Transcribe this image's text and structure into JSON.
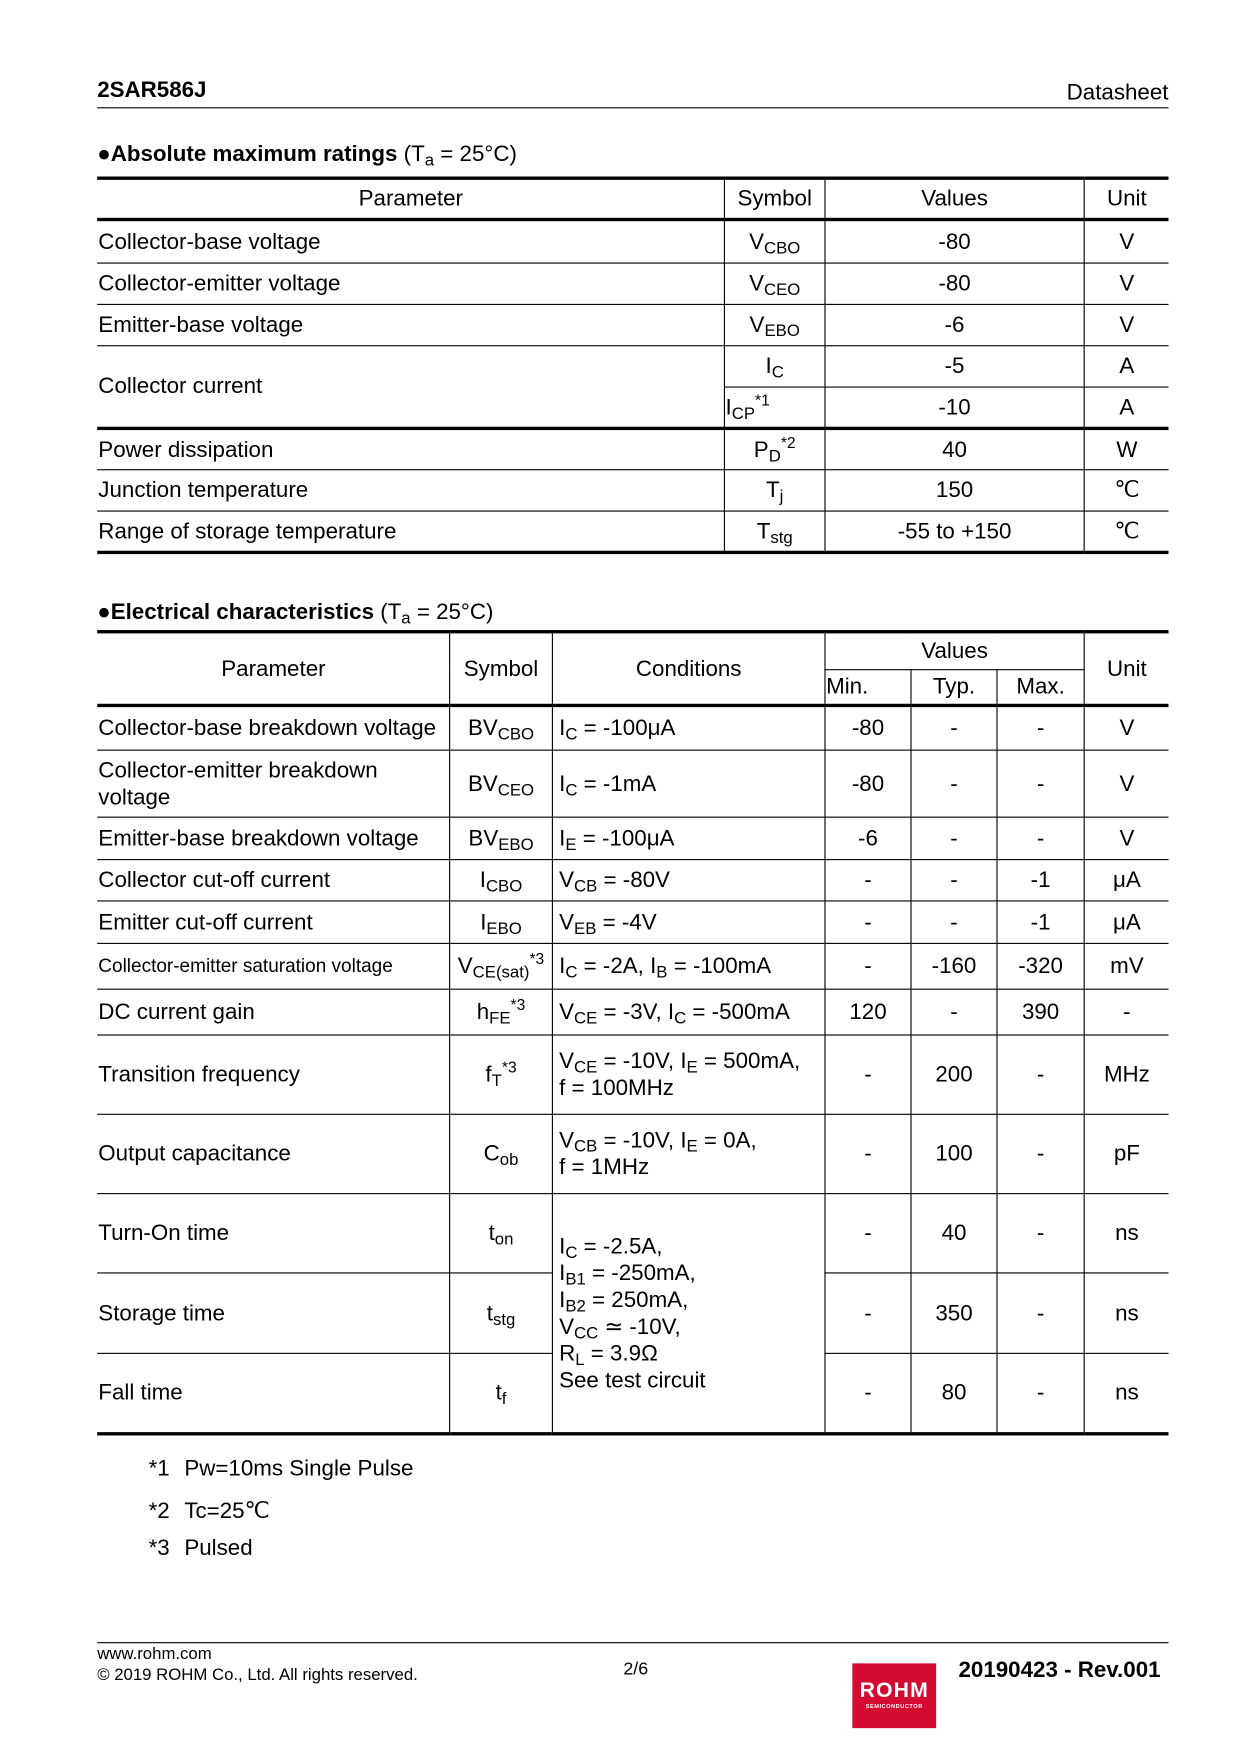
{
  "header": {
    "part": "2SAR586J",
    "doc_type": "Datasheet"
  },
  "abs_max": {
    "title": "Absolute maximum ratings",
    "condition_pre": " (T",
    "condition_sub": "a",
    "condition_post": " = 25°C)",
    "headers": [
      "Parameter",
      "Symbol",
      "Values",
      "Unit"
    ],
    "rows": [
      {
        "param": "Collector-base voltage",
        "sym": "V",
        "sub": "CBO",
        "sup": "",
        "value": "-80",
        "unit": "V"
      },
      {
        "param": "Collector-emitter voltage",
        "sym": "V",
        "sub": "CEO",
        "sup": "",
        "value": "-80",
        "unit": "V"
      },
      {
        "param": "Emitter-base voltage",
        "sym": "V",
        "sub": "EBO",
        "sup": "",
        "value": "-6",
        "unit": "V"
      },
      {
        "param": "Collector current",
        "sym": "I",
        "sub": "C",
        "sup": "",
        "value": "-5",
        "unit": "A"
      },
      {
        "param": "",
        "sym": "I",
        "sub": "CP",
        "sup": "*1",
        "value": "-10",
        "unit": "A"
      },
      {
        "param": "Power dissipation",
        "sym": "P",
        "sub": "D",
        "sup": "*2",
        "value": "40",
        "unit": "W"
      },
      {
        "param": "Junction temperature",
        "sym": "T",
        "sub": "j",
        "sup": "",
        "value": "150",
        "unit": "℃"
      },
      {
        "param": "Range of storage temperature",
        "sym": "T",
        "sub": "stg",
        "sup": "",
        "value": "-55 to +150",
        "unit": "℃"
      }
    ]
  },
  "elec": {
    "title": "Electrical characteristics",
    "condition_pre": " (T",
    "condition_sub": "a",
    "condition_post": " = 25°C)",
    "headers": {
      "parameter": "Parameter",
      "symbol": "Symbol",
      "conditions": "Conditions",
      "values": "Values",
      "min": "Min.",
      "typ": "Typ.",
      "max": "Max.",
      "unit": "Unit"
    },
    "rows": [
      {
        "param": "Collector-base breakdown voltage",
        "sym": "BV",
        "sub": "CBO",
        "sup": "",
        "cond": [
          [
            "I"
          ],
          [
            "C",
            "sub"
          ],
          [
            " = -100μA"
          ]
        ],
        "min": "-80",
        "typ": "-",
        "max": "-",
        "unit": "V"
      },
      {
        "param": "Collector-emitter breakdown voltage",
        "sym": "BV",
        "sub": "CEO",
        "sup": "",
        "cond": [
          [
            "I"
          ],
          [
            "C",
            "sub"
          ],
          [
            " = -1mA"
          ]
        ],
        "min": "-80",
        "typ": "-",
        "max": "-",
        "unit": "V"
      },
      {
        "param": "Emitter-base breakdown voltage",
        "sym": "BV",
        "sub": "EBO",
        "sup": "",
        "cond": [
          [
            "I"
          ],
          [
            "E",
            "sub"
          ],
          [
            " = -100μA"
          ]
        ],
        "min": "-6",
        "typ": "-",
        "max": "-",
        "unit": "V"
      },
      {
        "param": "Collector cut-off current",
        "sym": "I",
        "sub": "CBO",
        "sup": "",
        "cond": [
          [
            "V"
          ],
          [
            "CB",
            "sub"
          ],
          [
            " = -80V"
          ]
        ],
        "min": "-",
        "typ": "-",
        "max": "-1",
        "unit": "μA"
      },
      {
        "param": "Emitter cut-off current",
        "sym": "I",
        "sub": "EBO",
        "sup": "",
        "cond": [
          [
            "V"
          ],
          [
            "EB",
            "sub"
          ],
          [
            " = -4V"
          ]
        ],
        "min": "-",
        "typ": "-",
        "max": "-1",
        "unit": "μA"
      },
      {
        "param": "Collector-emitter saturation voltage",
        "small": true,
        "sym": "V",
        "sub": "CE(sat)",
        "sup": "*3",
        "cond": [
          [
            "I"
          ],
          [
            "C",
            "sub"
          ],
          [
            " = -2A, I"
          ],
          [
            "B",
            "sub"
          ],
          [
            " = -100mA"
          ]
        ],
        "min": "-",
        "typ": "-160",
        "max": "-320",
        "unit": "mV"
      },
      {
        "param": "DC current gain",
        "sym": "h",
        "sub": "FE",
        "sup": "*3",
        "cond": [
          [
            "V"
          ],
          [
            "CE",
            "sub"
          ],
          [
            " = -3V, I"
          ],
          [
            "C",
            "sub"
          ],
          [
            " = -500mA"
          ]
        ],
        "min": "120",
        "typ": "-",
        "max": "390",
        "unit": "-"
      },
      {
        "param": "Transition frequency",
        "sym": "f",
        "sub": "T",
        "sup": "*3",
        "cond": [
          [
            "V"
          ],
          [
            "CE",
            "sub"
          ],
          [
            " = -10V, I"
          ],
          [
            "E",
            "sub"
          ],
          [
            " = 500mA,"
          ],
          [
            "",
            "br"
          ],
          [
            "f = 100MHz"
          ]
        ],
        "min": "-",
        "typ": "200",
        "max": "-",
        "unit": "MHz"
      },
      {
        "param": "Output capacitance",
        "sym": "C",
        "sub": "ob",
        "sup": "",
        "cond": [
          [
            "V"
          ],
          [
            "CB",
            "sub"
          ],
          [
            " = -10V, I"
          ],
          [
            "E",
            "sub"
          ],
          [
            " = 0A,"
          ],
          [
            "",
            "br"
          ],
          [
            "f = 1MHz"
          ]
        ],
        "min": "-",
        "typ": "100",
        "max": "-",
        "unit": "pF"
      },
      {
        "param": "Turn-On time",
        "sym": "t",
        "sub": "on",
        "sup": "",
        "cond": [
          [
            "I"
          ],
          [
            "C",
            "sub"
          ],
          [
            " = -2.5A,"
          ],
          [
            "",
            "br"
          ],
          [
            "I"
          ],
          [
            "B1",
            "sub"
          ],
          [
            " = -250mA,"
          ],
          [
            "",
            "br"
          ],
          [
            "I"
          ],
          [
            "B2",
            "sub"
          ],
          [
            " = 250mA,"
          ],
          [
            "",
            "br"
          ],
          [
            "V"
          ],
          [
            "CC",
            "sub"
          ],
          [
            " ≃ -10V,"
          ],
          [
            "",
            "br"
          ],
          [
            "R"
          ],
          [
            "L",
            "sub"
          ],
          [
            " = 3.9Ω"
          ],
          [
            "",
            "br"
          ],
          [
            "See test circuit"
          ]
        ],
        "min": "-",
        "typ": "40",
        "max": "-",
        "unit": "ns"
      },
      {
        "param": "Storage time",
        "sym": "t",
        "sub": "stg",
        "sup": "",
        "min": "-",
        "typ": "350",
        "max": "-",
        "unit": "ns"
      },
      {
        "param": "Fall time",
        "sym": "t",
        "sub": "f",
        "sup": "",
        "min": "-",
        "typ": "80",
        "max": "-",
        "unit": "ns"
      }
    ]
  },
  "footnotes": [
    {
      "mark": "*1",
      "text": "Pw=10ms Single Pulse"
    },
    {
      "mark": "*2",
      "text": "Tc=25℃"
    },
    {
      "mark": "*3",
      "text": "Pulsed"
    }
  ],
  "footer": {
    "website": "www.rohm.com",
    "copyright": "© 2019 ROHM Co., Ltd. All rights reserved.",
    "page": "2/6",
    "revision": "20190423 - Rev.001",
    "logo_text": "ROHM",
    "logo_sub": "SEMICONDUCTOR",
    "logo_color": "#d50a30"
  }
}
